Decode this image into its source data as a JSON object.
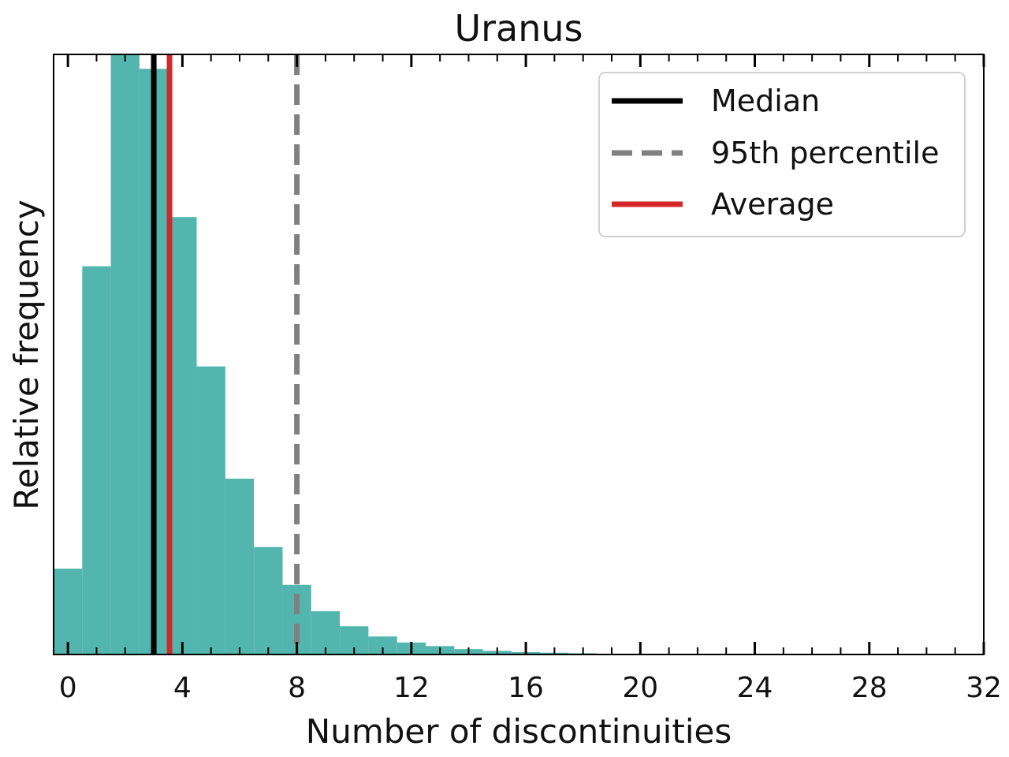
{
  "chart_data": {
    "type": "bar",
    "title": "Uranus",
    "xlabel": "Number of discontinuities",
    "ylabel": "Relative frequency",
    "xlim": [
      -0.5,
      32
    ],
    "ylim": [
      0,
      1.0
    ],
    "xticks": [
      0,
      4,
      8,
      12,
      16,
      20,
      24,
      28,
      32
    ],
    "xtick_labels": [
      "0",
      "4",
      "8",
      "12",
      "16",
      "20",
      "24",
      "28",
      "32"
    ],
    "y_tick_labels_shown": false,
    "grid": false,
    "legend_position": "top-right",
    "bar_color": "#52b5ae",
    "bins": [
      {
        "start": -0.5,
        "end": 0.5,
        "value": 0.143
      },
      {
        "start": 0.5,
        "end": 1.5,
        "value": 0.647
      },
      {
        "start": 1.5,
        "end": 2.5,
        "value": 1.0
      },
      {
        "start": 2.5,
        "end": 3.5,
        "value": 0.976
      },
      {
        "start": 3.5,
        "end": 4.5,
        "value": 0.729
      },
      {
        "start": 4.5,
        "end": 5.5,
        "value": 0.48
      },
      {
        "start": 5.5,
        "end": 6.5,
        "value": 0.293
      },
      {
        "start": 6.5,
        "end": 7.5,
        "value": 0.179
      },
      {
        "start": 7.5,
        "end": 8.5,
        "value": 0.116
      },
      {
        "start": 8.5,
        "end": 9.5,
        "value": 0.072
      },
      {
        "start": 9.5,
        "end": 10.5,
        "value": 0.047
      },
      {
        "start": 10.5,
        "end": 11.5,
        "value": 0.03
      },
      {
        "start": 11.5,
        "end": 12.5,
        "value": 0.02
      },
      {
        "start": 12.5,
        "end": 13.5,
        "value": 0.014
      },
      {
        "start": 13.5,
        "end": 14.5,
        "value": 0.009
      },
      {
        "start": 14.5,
        "end": 15.5,
        "value": 0.006
      },
      {
        "start": 15.5,
        "end": 16.5,
        "value": 0.004
      },
      {
        "start": 16.5,
        "end": 17.5,
        "value": 0.003
      },
      {
        "start": 17.5,
        "end": 18.5,
        "value": 0.002
      },
      {
        "start": 18.5,
        "end": 19.5,
        "value": 0.001
      },
      {
        "start": 19.5,
        "end": 20.5,
        "value": 0.001
      }
    ],
    "reference_lines": [
      {
        "name": "Median",
        "x": 3.0,
        "color": "#000000",
        "style": "solid"
      },
      {
        "name": "95th percentile",
        "x": 8.0,
        "color": "#808080",
        "style": "dashed"
      },
      {
        "name": "Average",
        "x": 3.55,
        "color": "#d62728",
        "style": "solid"
      }
    ]
  }
}
